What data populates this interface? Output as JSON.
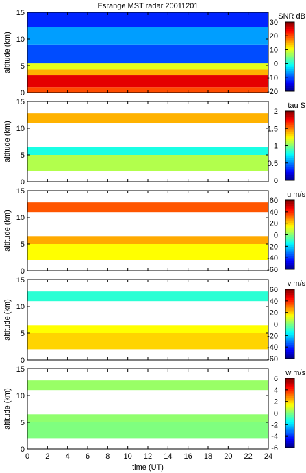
{
  "title": "Esrange MST radar 20011201",
  "xlabel": "time (UT)",
  "ylabel": "altitude (km)",
  "colormap": [
    "#00007f",
    "#0000ff",
    "#007fff",
    "#00ffff",
    "#7fff7f",
    "#ffff00",
    "#ff7f00",
    "#ff0000",
    "#7f0000"
  ],
  "chart_data": [
    {
      "type": "heatmap",
      "quantity": "SNR",
      "colorbar_label": "SNR dB",
      "x": [
        0,
        24
      ],
      "xlim": [
        0,
        24
      ],
      "xticks": [
        0,
        2,
        4,
        6,
        8,
        10,
        12,
        14,
        16,
        18,
        20,
        22,
        24
      ],
      "ylim": [
        0,
        15
      ],
      "yticks": [
        0,
        5,
        10,
        15
      ],
      "clim": [
        -20,
        30
      ],
      "cticks": [
        -20,
        -10,
        0,
        10,
        20,
        30
      ],
      "layers": [
        {
          "altitude": [
            0.0,
            1.0
          ],
          "value": 20
        },
        {
          "altitude": [
            1.0,
            3.2
          ],
          "value": 25
        },
        {
          "altitude": [
            3.2,
            4.3
          ],
          "value": 15
        },
        {
          "altitude": [
            4.3,
            5.5
          ],
          "value": 10
        },
        {
          "altitude": [
            5.5,
            9.0
          ],
          "value": -10
        },
        {
          "altitude": [
            9.0,
            12.3
          ],
          "value": -6
        },
        {
          "altitude": [
            12.3,
            15.0
          ],
          "value": -12
        }
      ]
    },
    {
      "type": "heatmap",
      "quantity": "tau",
      "colorbar_label": "tau S",
      "x": [
        0,
        24
      ],
      "xlim": [
        0,
        24
      ],
      "xticks": [
        0,
        2,
        4,
        6,
        8,
        10,
        12,
        14,
        16,
        18,
        20,
        22,
        24
      ],
      "ylim": [
        0,
        15
      ],
      "yticks": [
        0,
        5,
        10,
        15
      ],
      "clim": [
        0,
        2
      ],
      "cticks": [
        0,
        0.5,
        1,
        1.5,
        2
      ],
      "layers": [
        {
          "altitude": [
            11.0,
            12.8
          ],
          "value": 1.4
        },
        {
          "altitude": [
            5.0,
            6.5
          ],
          "value": 0.8
        },
        {
          "altitude": [
            2.0,
            5.0
          ],
          "value": 1.1
        }
      ]
    },
    {
      "type": "heatmap",
      "quantity": "u",
      "colorbar_label": "u m/s",
      "x": [
        0,
        24
      ],
      "xlim": [
        0,
        24
      ],
      "xticks": [
        0,
        2,
        4,
        6,
        8,
        10,
        12,
        14,
        16,
        18,
        20,
        22,
        24
      ],
      "ylim": [
        0,
        15
      ],
      "yticks": [
        0,
        5,
        10,
        15
      ],
      "clim": [
        -60,
        60
      ],
      "cticks": [
        -60,
        -40,
        -20,
        0,
        20,
        40,
        60
      ],
      "layers": [
        {
          "altitude": [
            11.0,
            12.8
          ],
          "value": 35
        },
        {
          "altitude": [
            5.0,
            6.5
          ],
          "value": 25
        },
        {
          "altitude": [
            2.0,
            5.0
          ],
          "value": 15
        }
      ]
    },
    {
      "type": "heatmap",
      "quantity": "v",
      "colorbar_label": "v m/s",
      "x": [
        0,
        24
      ],
      "xlim": [
        0,
        24
      ],
      "xticks": [
        0,
        2,
        4,
        6,
        8,
        10,
        12,
        14,
        16,
        18,
        20,
        22,
        24
      ],
      "ylim": [
        0,
        15
      ],
      "yticks": [
        0,
        5,
        10,
        15
      ],
      "clim": [
        -60,
        60
      ],
      "cticks": [
        -60,
        -40,
        -20,
        0,
        20,
        40,
        60
      ],
      "layers": [
        {
          "altitude": [
            11.0,
            12.8
          ],
          "value": -10
        },
        {
          "altitude": [
            5.0,
            6.5
          ],
          "value": 15
        },
        {
          "altitude": [
            2.0,
            5.0
          ],
          "value": 20
        }
      ]
    },
    {
      "type": "heatmap",
      "quantity": "w",
      "colorbar_label": "w m/s",
      "x": [
        0,
        24
      ],
      "xlim": [
        0,
        24
      ],
      "xticks": [
        0,
        2,
        4,
        6,
        8,
        10,
        12,
        14,
        16,
        18,
        20,
        22,
        24
      ],
      "ylim": [
        0,
        15
      ],
      "yticks": [
        0,
        5,
        10,
        15
      ],
      "clim": [
        -6,
        6
      ],
      "cticks": [
        -6,
        -4,
        -2,
        0,
        2,
        4,
        6
      ],
      "layers": [
        {
          "altitude": [
            11.0,
            12.8
          ],
          "value": 0.3
        },
        {
          "altitude": [
            5.0,
            6.5
          ],
          "value": 0.2
        },
        {
          "altitude": [
            2.0,
            5.0
          ],
          "value": 0.0
        }
      ]
    }
  ]
}
